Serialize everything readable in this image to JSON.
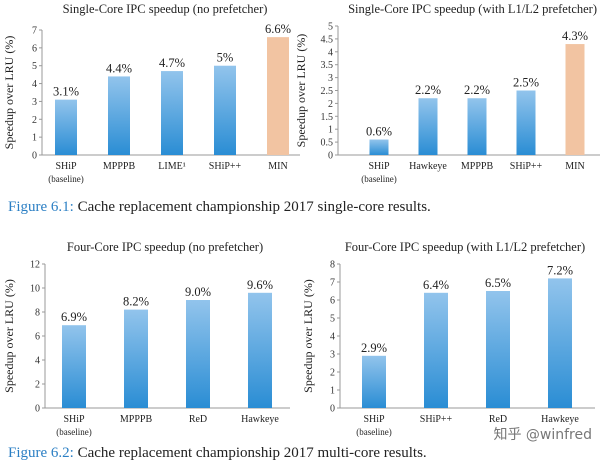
{
  "chart_data": [
    {
      "type": "bar",
      "title": "Single-Core IPC speedup (no prefetcher)",
      "ylabel": "Speedup over LRU (%)",
      "ylim": [
        0,
        7
      ],
      "yticks": [
        0,
        1,
        2,
        3,
        4,
        5,
        6,
        7
      ],
      "categories": [
        "SHiP",
        "MPPPB",
        "LIME¹",
        "SHiP++",
        "MIN"
      ],
      "sublabels": [
        "(baseline)",
        "",
        "",
        "",
        ""
      ],
      "values": [
        3.1,
        4.4,
        4.7,
        5.0,
        6.6
      ],
      "data_labels": [
        "3.1%",
        "4.4%",
        "4.7%",
        "5%",
        "6.6%"
      ],
      "highlight": [
        "MIN"
      ],
      "grid": false
    },
    {
      "type": "bar",
      "title": "Single-Core IPC speedup (with L1/L2 prefetcher)",
      "ylabel": "Speedup over LRU (%)",
      "ylim": [
        0,
        5
      ],
      "yticks": [
        0,
        0.5,
        1,
        1.5,
        2,
        2.5,
        3,
        3.5,
        4,
        4.5,
        5
      ],
      "categories": [
        "SHiP",
        "Hawkeye",
        "MPPPB",
        "SHiP++",
        "MIN"
      ],
      "sublabels": [
        "(baseline)",
        "",
        "",
        "",
        ""
      ],
      "values": [
        0.6,
        2.2,
        2.2,
        2.5,
        4.3
      ],
      "data_labels": [
        "0.6%",
        "2.2%",
        "2.2%",
        "2.5%",
        "4.3%"
      ],
      "highlight": [
        "MIN"
      ],
      "grid": false
    },
    {
      "type": "bar",
      "title": "Four-Core IPC speedup (no prefetcher)",
      "ylabel": "Speedup over LRU (%)",
      "ylim": [
        0,
        12
      ],
      "yticks": [
        0,
        2,
        4,
        6,
        8,
        10,
        12
      ],
      "categories": [
        "SHiP",
        "MPPPB",
        "ReD",
        "Hawkeye"
      ],
      "sublabels": [
        "(baseline)",
        "",
        "",
        ""
      ],
      "values": [
        6.9,
        8.2,
        9.0,
        9.6
      ],
      "data_labels": [
        "6.9%",
        "8.2%",
        "9.0%",
        "9.6%"
      ],
      "highlight": [],
      "grid": false
    },
    {
      "type": "bar",
      "title": "Four-Core IPC speedup (with L1/L2 prefetcher)",
      "ylabel": "Speedup over LRU (%)",
      "ylim": [
        0,
        8
      ],
      "yticks": [
        0,
        1,
        2,
        3,
        4,
        5,
        6,
        7,
        8
      ],
      "categories": [
        "SHiP",
        "SHiP++",
        "ReD",
        "Hawkeye"
      ],
      "sublabels": [
        "(baseline)",
        "",
        "",
        ""
      ],
      "values": [
        2.9,
        6.4,
        6.5,
        7.2
      ],
      "data_labels": [
        "2.9%",
        "6.4%",
        "6.5%",
        "7.2%"
      ],
      "highlight": [],
      "grid": false
    }
  ],
  "colors": {
    "bar_top": "#92c4ec",
    "bar_bottom": "#2a8dd4",
    "highlight": "#f2c4a2",
    "caption_label": "#2b7fc4"
  },
  "captions": [
    {
      "label": "Figure 6.1:",
      "text": " Cache replacement championship 2017 single-core results."
    },
    {
      "label": "Figure 6.2:",
      "text": " Cache replacement championship 2017 multi-core results."
    }
  ],
  "watermark": "知乎 @winfred"
}
